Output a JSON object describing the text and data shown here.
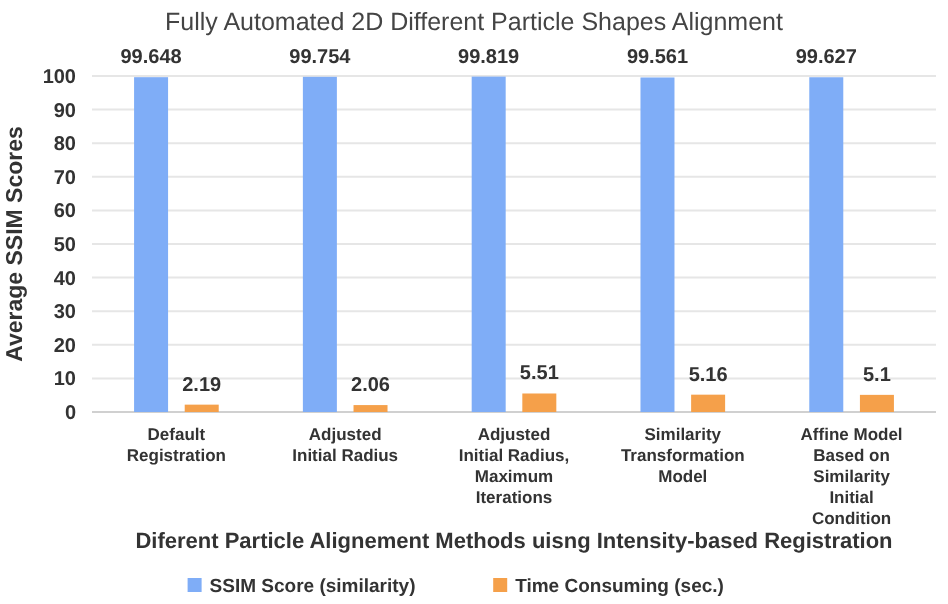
{
  "chart_data": {
    "type": "bar",
    "title": "Fully Automated 2D Different Particle Shapes Alignment",
    "xlabel": "Diferent Particle Alignement Methods uisng Intensity-based Registration",
    "ylabel": "Average SSIM Scores",
    "categories": [
      "Default Registration",
      "Adjusted Initial Radius",
      "Adjusted Initial Radius, Maximum Iterations",
      "Similarity Transformation Model",
      "Affine Model Based on Similarity Initial Condition"
    ],
    "series": [
      {
        "name": "SSIM Score (similarity)",
        "color": "#7fadf7",
        "values": [
          99.648,
          99.754,
          99.819,
          99.561,
          99.627
        ]
      },
      {
        "name": "Time Consuming (sec.)",
        "color": "#f5a04a",
        "values": [
          2.19,
          2.06,
          5.51,
          5.16,
          5.1
        ]
      }
    ],
    "ylim": [
      0,
      100
    ],
    "yticks": [
      0,
      10,
      20,
      30,
      40,
      50,
      60,
      70,
      80,
      90,
      100
    ],
    "grid": "y",
    "legend": "bottom",
    "data_labels": true
  }
}
